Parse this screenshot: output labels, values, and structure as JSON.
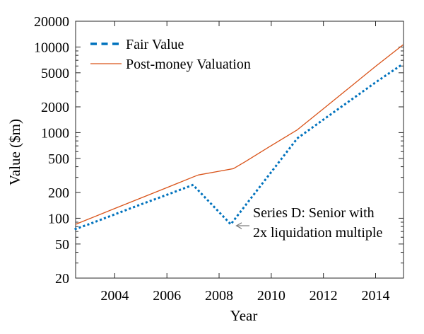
{
  "chart_data": {
    "type": "line",
    "title": "",
    "xlabel": "Year",
    "ylabel": "Value ($m)",
    "y_scale": "log",
    "grid": false,
    "xlim": [
      2002.5,
      2015.07
    ],
    "ylim": [
      20,
      20000
    ],
    "x_tick_values": [
      2004,
      2006,
      2008,
      2010,
      2012,
      2014
    ],
    "x_tick_labels": [
      "2004",
      "2006",
      "2008",
      "2010",
      "2012",
      "2014"
    ],
    "y_tick_values": [
      20000,
      10000,
      5000,
      2000,
      1000,
      500,
      200,
      100,
      50,
      20
    ],
    "y_tick_labels": [
      "20000",
      "10000",
      "5000",
      "2000",
      "1000",
      "500",
      "200",
      "100",
      "50",
      "20"
    ],
    "legend_position": "top-left-inside",
    "axis_color": "#262626",
    "series": [
      {
        "name": "Fair Value",
        "color": "#0072BD",
        "style": "dotted",
        "points": [
          [
            2002.5,
            75
          ],
          [
            2003,
            85
          ],
          [
            2004,
            111
          ],
          [
            2005,
            145
          ],
          [
            2006,
            188
          ],
          [
            2007,
            245
          ],
          [
            2008,
            118
          ],
          [
            2008.45,
            85
          ],
          [
            2009,
            140
          ],
          [
            2010,
            346
          ],
          [
            2011,
            860
          ],
          [
            2012,
            1420
          ],
          [
            2013,
            2340
          ],
          [
            2014,
            3860
          ],
          [
            2015.05,
            6350
          ]
        ]
      },
      {
        "name": "Post-money Valuation",
        "color": "#D95319",
        "style": "solid",
        "points": [
          [
            2002.5,
            85
          ],
          [
            2003,
            98
          ],
          [
            2004,
            130
          ],
          [
            2005,
            172
          ],
          [
            2006,
            228
          ],
          [
            2007,
            303
          ],
          [
            2007.2,
            320
          ],
          [
            2008,
            354
          ],
          [
            2008.55,
            380
          ],
          [
            2009,
            457
          ],
          [
            2010,
            705
          ],
          [
            2011,
            1080
          ],
          [
            2012,
            1905
          ],
          [
            2013,
            3360
          ],
          [
            2014,
            5940
          ],
          [
            2015.05,
            10600
          ]
        ]
      }
    ],
    "annotation": {
      "line1": "Series D: Senior with",
      "line2": "2x liquidation multiple",
      "arrow_color": "#7f7f7f",
      "arrow_points_to": [
        2008.45,
        85
      ]
    }
  }
}
